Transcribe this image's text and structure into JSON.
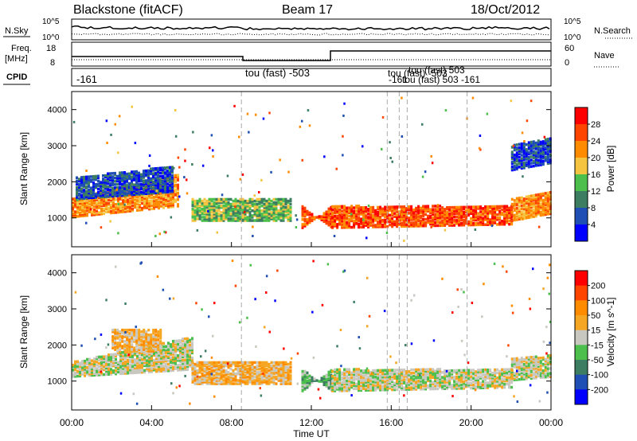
{
  "header": {
    "station": "Blackstone (fitACF)",
    "beam": "Beam 17",
    "date": "18/Oct/2012"
  },
  "noise_panel": {
    "left_label": "N.Sky",
    "right_label": "N.Search",
    "left_ticks": [
      "10^5",
      "10^0"
    ],
    "right_ticks": [
      "10^5",
      "10^0"
    ]
  },
  "freq_panel": {
    "left_label": "Freq.",
    "left_unit": "[MHz]",
    "right_label": "Nave",
    "left_ticks": [
      "18",
      "8"
    ],
    "right_ticks": [
      "60",
      "0"
    ]
  },
  "cpid_panel": {
    "label": "CPID",
    "entries": [
      "-161",
      "tou (fast) -503",
      "tou (fast) -503",
      "tou (fast) 503",
      "-161",
      "tou (fast) 503 -161"
    ]
  },
  "colors": {
    "power_scale": [
      "#0000ff",
      "#1f4fb4",
      "#3d7d62",
      "#4cbf4c",
      "#f5c542",
      "#ff8c00",
      "#ff4500",
      "#ff0000"
    ],
    "velocity_scale": [
      "#0000ff",
      "#1f4fb4",
      "#3d7d62",
      "#4cbf4c",
      "#c8c8c0",
      "#f5a623",
      "#ff8c00",
      "#ff4500",
      "#ff0000"
    ]
  },
  "chart_data": [
    {
      "type": "heatmap",
      "title": "Power",
      "xlabel": "Time UT",
      "ylabel": "Slant Range [km]",
      "xlim": [
        "00:00",
        "24:00"
      ],
      "ylim": [
        200,
        4500
      ],
      "x_ticks": [
        "00:00",
        "04:00",
        "08:00",
        "12:00",
        "16:00",
        "20:00",
        "00:00"
      ],
      "y_ticks": [
        1000,
        2000,
        3000,
        4000
      ],
      "colorbar": {
        "label": "Power [dB]",
        "ticks": [
          "4",
          "8",
          "12",
          "16",
          "20",
          "24",
          "28"
        ]
      },
      "bands": [
        {
          "start_h": 0.0,
          "end_h": 5.3,
          "r0": 1000,
          "r1": 1500,
          "r0e": 1300,
          "r1e": 2200,
          "level": 5
        },
        {
          "start_h": 0.2,
          "end_h": 5.0,
          "r0": 1500,
          "r1": 2100,
          "r0e": 1700,
          "r1e": 2400,
          "level": 1
        },
        {
          "start_h": 6.0,
          "end_h": 11.0,
          "r0": 900,
          "r1": 1500,
          "r0e": 900,
          "r1e": 1500,
          "level": 3
        },
        {
          "start_h": 11.5,
          "end_h": 13.0,
          "r0": 1300,
          "r1": 700,
          "r0e": 700,
          "r1e": 1300,
          "level": 6
        },
        {
          "start_h": 13.0,
          "end_h": 22.0,
          "r0": 700,
          "r1": 1300,
          "r0e": 800,
          "r1e": 1300,
          "level": 6
        },
        {
          "start_h": 22.0,
          "end_h": 24.0,
          "r0": 900,
          "r1": 1500,
          "r0e": 1100,
          "r1e": 1700,
          "level": 5
        },
        {
          "start_h": 22.0,
          "end_h": 24.0,
          "r0": 2300,
          "r1": 3000,
          "r0e": 2500,
          "r1e": 3200,
          "level": 1
        }
      ]
    },
    {
      "type": "heatmap",
      "title": "Velocity",
      "xlabel": "Time UT",
      "ylabel": "Slant Range [km]",
      "xlim": [
        "00:00",
        "24:00"
      ],
      "ylim": [
        200,
        4500
      ],
      "x_ticks": [
        "00:00",
        "04:00",
        "08:00",
        "12:00",
        "16:00",
        "20:00",
        "00:00"
      ],
      "y_ticks": [
        1000,
        2000,
        3000,
        4000
      ],
      "colorbar": {
        "label": "Velocity [m s^-1]",
        "ticks": [
          "200",
          "100",
          "50",
          "15",
          "-15",
          "-50",
          "-100",
          "-200"
        ]
      },
      "bands": [
        {
          "start_h": 0.0,
          "end_h": 6.0,
          "r0": 1100,
          "r1": 1500,
          "r0e": 1300,
          "r1e": 2200,
          "level": 4
        },
        {
          "start_h": 2.0,
          "end_h": 4.5,
          "r0": 1800,
          "r1": 2400,
          "r0e": 1800,
          "r1e": 2400,
          "level": 5
        },
        {
          "start_h": 6.0,
          "end_h": 11.0,
          "r0": 900,
          "r1": 1500,
          "r0e": 900,
          "r1e": 1500,
          "level": 5
        },
        {
          "start_h": 11.5,
          "end_h": 13.0,
          "r0": 1300,
          "r1": 700,
          "r0e": 700,
          "r1e": 1300,
          "level": 3
        },
        {
          "start_h": 13.0,
          "end_h": 22.0,
          "r0": 700,
          "r1": 1300,
          "r0e": 800,
          "r1e": 1300,
          "level": 4
        },
        {
          "start_h": 22.0,
          "end_h": 24.0,
          "r0": 1000,
          "r1": 1600,
          "r0e": 1100,
          "r1e": 1700,
          "level": 4
        }
      ]
    }
  ],
  "cpid_change_hours": [
    8.5,
    15.8,
    16.4,
    16.8,
    19.8
  ],
  "footer": {
    "xlabel": "Time UT"
  }
}
